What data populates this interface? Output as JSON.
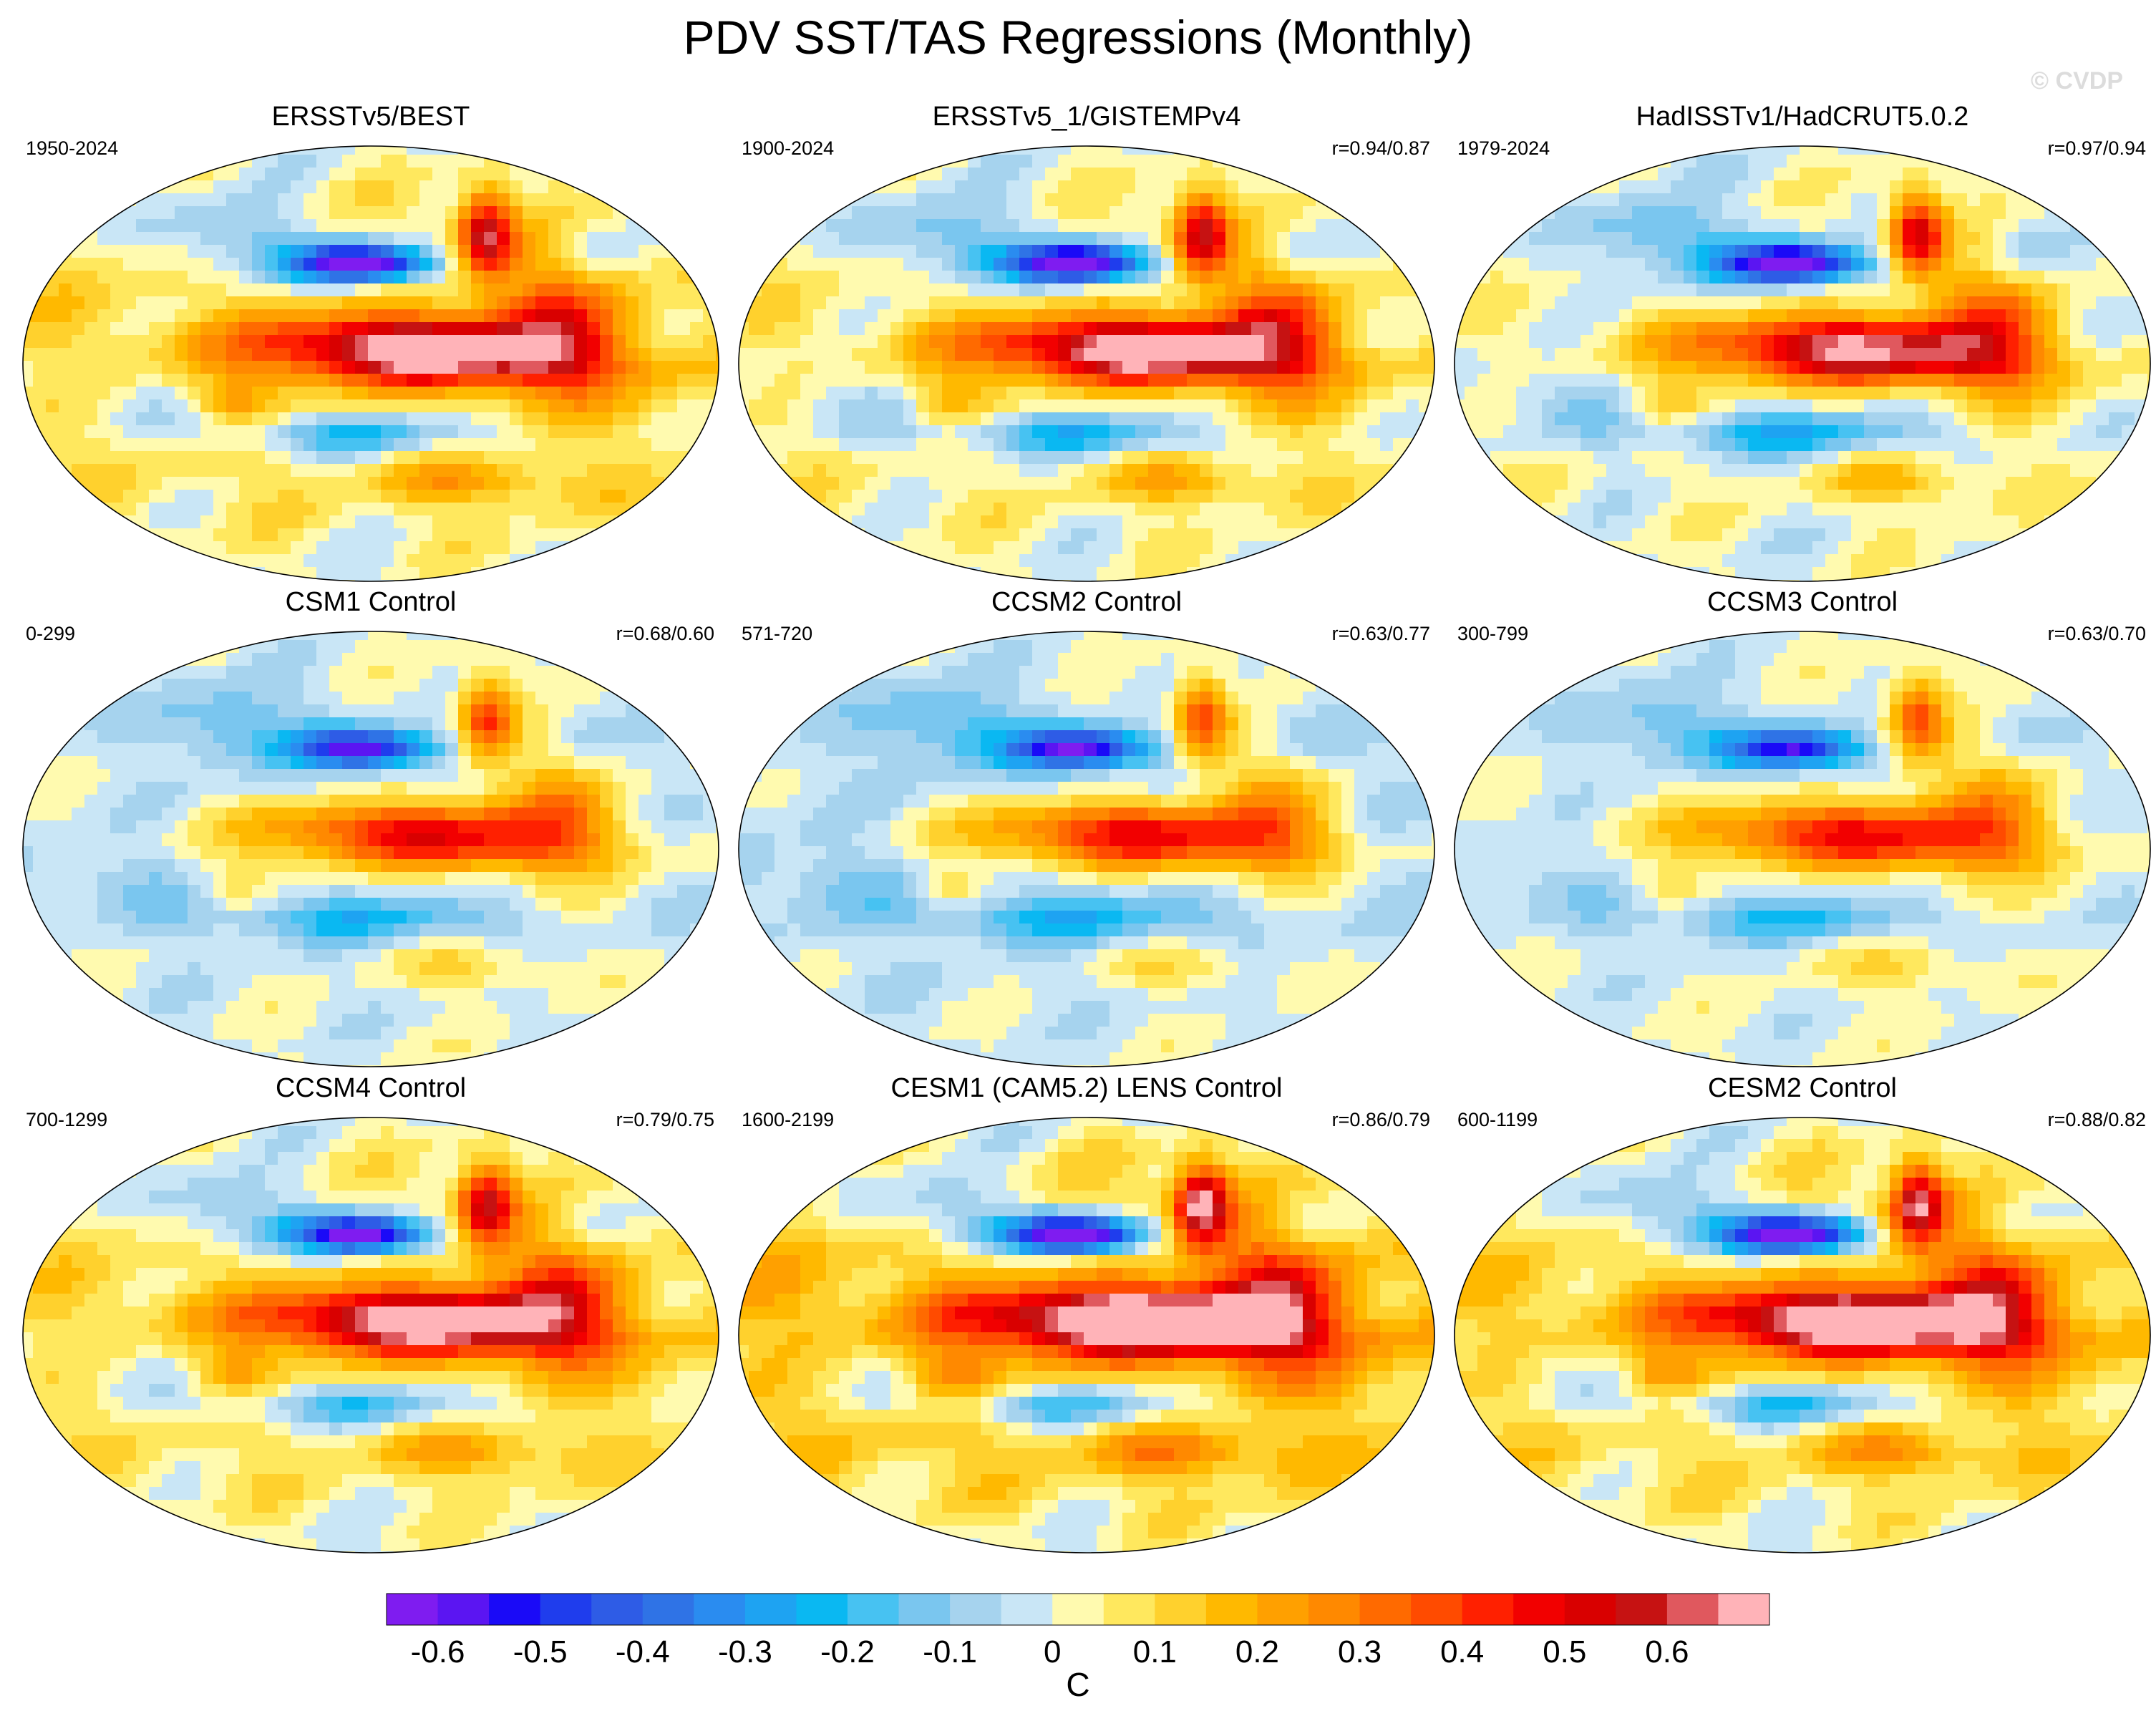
{
  "figure": {
    "title": "PDV SST/TAS Regressions (Monthly)",
    "watermark": "© CVDP",
    "units": "C"
  },
  "panels": [
    {
      "title": "ERSSTv5/BEST",
      "years": "1950-2024",
      "correlation": "",
      "amp": 1.0,
      "dry": 0.1
    },
    {
      "title": "ERSSTv5_1/GISTEMPv4",
      "years": "1900-2024",
      "correlation": "r=0.94/0.87",
      "amp": 1.0,
      "dry": 0.06
    },
    {
      "title": "HadISSTv1/HadCRUT5.0.2",
      "years": "1979-2024",
      "correlation": "r=0.97/0.94",
      "amp": 0.95,
      "dry": 0.02
    },
    {
      "title": "CSM1 Control",
      "years": "0-299",
      "correlation": "r=0.68/0.60",
      "amp": 0.75,
      "dry": -0.02
    },
    {
      "title": "CCSM2 Control",
      "years": "571-720",
      "correlation": "r=0.63/0.77",
      "amp": 0.75,
      "dry": -0.04
    },
    {
      "title": "CCSM3 Control",
      "years": "300-799",
      "correlation": "r=0.63/0.70",
      "amp": 0.7,
      "dry": -0.01
    },
    {
      "title": "CCSM4 Control",
      "years": "700-1299",
      "correlation": "r=0.79/0.75",
      "amp": 0.95,
      "dry": 0.1
    },
    {
      "title": "CESM1 (CAM5.2) LENS Control",
      "years": "1600-2199",
      "correlation": "r=0.86/0.79",
      "amp": 1.1,
      "dry": 0.16
    },
    {
      "title": "CESM2 Control",
      "years": "600-1199",
      "correlation": "r=0.88/0.82",
      "amp": 1.05,
      "dry": 0.12
    }
  ],
  "colorbar": {
    "colors": [
      "#7f1cf0",
      "#5b15f2",
      "#1a0af7",
      "#1f3ded",
      "#2e5ce6",
      "#2f73e6",
      "#2a8cf0",
      "#1ea3f2",
      "#0ab8f2",
      "#47c2f2",
      "#7ac6ef",
      "#a6d3ee",
      "#c9e6f6",
      "#fffaaf",
      "#ffe85e",
      "#ffd12d",
      "#ffb900",
      "#ffa000",
      "#ff8900",
      "#ff6a00",
      "#ff4b00",
      "#ff2000",
      "#f20000",
      "#d90000",
      "#c61212",
      "#e0585e",
      "#ffb3b8"
    ],
    "tick_labels": [
      "-0.6",
      "-0.5",
      "-0.4",
      "-0.3",
      "-0.2",
      "-0.1",
      "0",
      "0.1",
      "0.2",
      "0.3",
      "0.4",
      "0.5",
      "0.6"
    ],
    "tick_values": [
      -0.6,
      -0.5,
      -0.4,
      -0.3,
      -0.2,
      -0.1,
      0,
      0.1,
      0.2,
      0.3,
      0.4,
      0.5,
      0.6
    ],
    "range": [
      -0.65,
      0.7
    ]
  }
}
